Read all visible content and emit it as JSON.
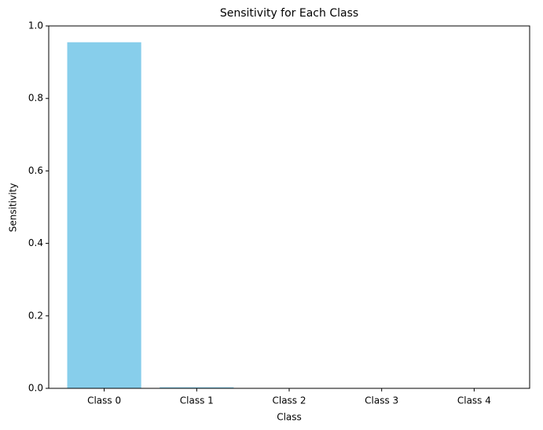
{
  "chart_data": {
    "type": "bar",
    "title": "Sensitivity for Each Class",
    "x_label": "Class",
    "y_label": "Sensitivity",
    "categories": [
      "Class 0",
      "Class 1",
      "Class 2",
      "Class 3",
      "Class 4"
    ],
    "values": [
      0.955,
      0.003,
      0,
      0,
      0
    ],
    "color": "#87ceeb",
    "ylim": [
      0,
      1
    ],
    "yticks": [
      {
        "value": 0,
        "label": "0.0"
      },
      0.2,
      0.4,
      0.6,
      0.8,
      {
        "value": 1,
        "label": "1.0"
      }
    ],
    "grid": false
  }
}
